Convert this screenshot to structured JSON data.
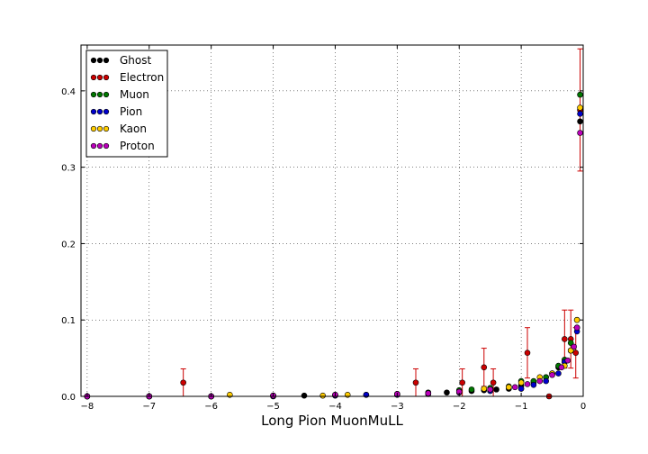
{
  "chart_data": {
    "type": "scatter",
    "title": "",
    "xlabel": "Long Pion MuonMuLL",
    "ylabel": "",
    "xlim": [
      -8.1,
      0
    ],
    "ylim": [
      0,
      0.46
    ],
    "grid": true,
    "legend_placement": "top-left",
    "x_ticks": [
      -8,
      -7,
      -6,
      -5,
      -4,
      -3,
      -2,
      -1,
      0
    ],
    "x_tick_labels": [
      "−8",
      "−7",
      "−6",
      "−5",
      "−4",
      "−3",
      "−2",
      "−1",
      "0"
    ],
    "y_ticks": [
      0.0,
      0.1,
      0.2,
      0.3,
      0.4
    ],
    "y_tick_labels": [
      "0.0",
      "0.1",
      "0.2",
      "0.3",
      "0.4"
    ],
    "series": [
      {
        "name": "Ghost",
        "color": "#000000",
        "x": [
          -8.0,
          -7.0,
          -6.0,
          -5.0,
          -4.5,
          -4.0,
          -3.5,
          -3.0,
          -2.5,
          -2.2,
          -2.0,
          -1.8,
          -1.6,
          -1.4,
          -1.2,
          -1.0,
          -0.8,
          -0.6,
          -0.5,
          -0.4,
          -0.3,
          -0.2,
          -0.1,
          -0.05
        ],
        "y": [
          0.0,
          0.0,
          0.0,
          0.001,
          0.001,
          0.002,
          0.002,
          0.003,
          0.004,
          0.005,
          0.006,
          0.007,
          0.008,
          0.009,
          0.01,
          0.014,
          0.018,
          0.025,
          0.03,
          0.038,
          0.045,
          0.06,
          0.09,
          0.36
        ]
      },
      {
        "name": "Electron",
        "color": "#cc0000",
        "x": [
          -6.45,
          -2.7,
          -1.95,
          -1.6,
          -1.45,
          -0.9,
          -0.55,
          -0.3,
          -0.2,
          -0.12,
          -0.05
        ],
        "y": [
          0.018,
          0.018,
          0.018,
          0.038,
          0.018,
          0.057,
          0.0,
          0.075,
          0.075,
          0.057,
          0.375
        ],
        "err": [
          0.018,
          0.018,
          0.018,
          0.025,
          0.018,
          0.033,
          0.0,
          0.038,
          0.038,
          0.033,
          0.08
        ]
      },
      {
        "name": "Muon",
        "color": "#007700",
        "x": [
          -8.0,
          -7.0,
          -6.0,
          -5.0,
          -4.0,
          -3.0,
          -2.5,
          -2.0,
          -1.8,
          -1.5,
          -1.2,
          -1.0,
          -0.8,
          -0.6,
          -0.4,
          -0.3,
          -0.2,
          -0.1,
          -0.05
        ],
        "y": [
          0.0,
          0.0,
          0.0,
          0.001,
          0.002,
          0.003,
          0.005,
          0.008,
          0.009,
          0.011,
          0.013,
          0.02,
          0.02,
          0.025,
          0.04,
          0.048,
          0.07,
          0.1,
          0.395
        ]
      },
      {
        "name": "Pion",
        "color": "#0000cc",
        "x": [
          -8.0,
          -7.0,
          -6.0,
          -5.0,
          -4.0,
          -3.5,
          -3.0,
          -2.5,
          -2.0,
          -1.5,
          -1.0,
          -0.8,
          -0.6,
          -0.4,
          -0.3,
          -0.2,
          -0.1,
          -0.05
        ],
        "y": [
          0.0,
          0.0,
          0.0,
          0.0,
          0.001,
          0.002,
          0.002,
          0.003,
          0.005,
          0.007,
          0.01,
          0.015,
          0.02,
          0.03,
          0.045,
          0.06,
          0.085,
          0.37
        ]
      },
      {
        "name": "Kaon",
        "color": "#ffcc00",
        "x": [
          -8.0,
          -7.0,
          -5.7,
          -5.0,
          -4.2,
          -3.8,
          -3.0,
          -2.5,
          -2.0,
          -1.6,
          -1.2,
          -1.0,
          -0.7,
          -0.5,
          -0.3,
          -0.2,
          -0.1,
          -0.05
        ],
        "y": [
          0.0,
          0.0,
          0.002,
          0.001,
          0.001,
          0.002,
          0.003,
          0.004,
          0.006,
          0.01,
          0.012,
          0.018,
          0.025,
          0.03,
          0.04,
          0.06,
          0.1,
          0.378
        ]
      },
      {
        "name": "Proton",
        "color": "#bb00bb",
        "x": [
          -8.0,
          -7.0,
          -6.0,
          -5.0,
          -4.0,
          -3.0,
          -2.5,
          -2.0,
          -1.5,
          -1.1,
          -0.9,
          -0.7,
          -0.5,
          -0.35,
          -0.25,
          -0.15,
          -0.1,
          -0.05
        ],
        "y": [
          0.0,
          0.0,
          0.0,
          0.001,
          0.002,
          0.003,
          0.004,
          0.006,
          0.009,
          0.012,
          0.016,
          0.02,
          0.028,
          0.038,
          0.047,
          0.065,
          0.09,
          0.345
        ]
      }
    ]
  }
}
